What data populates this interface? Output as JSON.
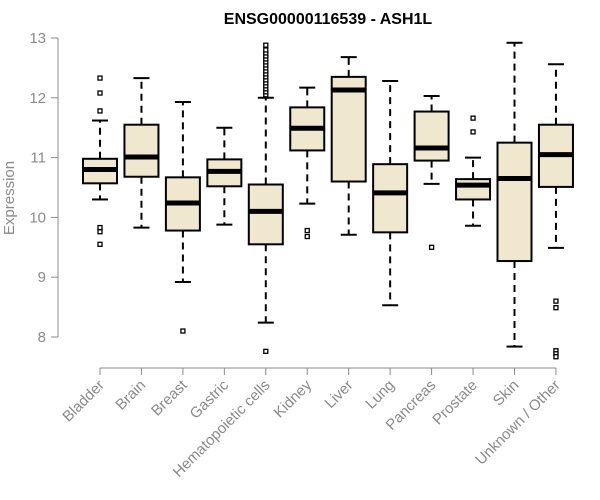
{
  "chart_data": {
    "type": "box",
    "title": "ENSG00000116539 - ASH1L",
    "xlabel": "",
    "ylabel": "Expression",
    "ylim": [
      7.6,
      13.0
    ],
    "yticks": [
      8,
      9,
      10,
      11,
      12,
      13
    ],
    "categories": [
      "Bladder",
      "Brain",
      "Breast",
      "Gastric",
      "Hematopoietic cells",
      "Kidney",
      "Liver",
      "Lung",
      "Pancreas",
      "Prostate",
      "Skin",
      "Unknown / Other"
    ],
    "box_fill": "#efe8cf",
    "stroke": "#000000",
    "boxes": [
      {
        "category": "Bladder",
        "whisker_low": 10.3,
        "q1": 10.57,
        "median": 10.8,
        "q3": 10.98,
        "whisker_high": 11.62,
        "outliers": [
          12.33,
          12.08,
          11.78,
          9.83,
          9.76,
          9.55
        ]
      },
      {
        "category": "Brain",
        "whisker_low": 9.83,
        "q1": 10.68,
        "median": 11.01,
        "q3": 11.55,
        "whisker_high": 12.33,
        "outliers": []
      },
      {
        "category": "Breast",
        "whisker_low": 8.92,
        "q1": 9.78,
        "median": 10.24,
        "q3": 10.67,
        "whisker_high": 11.93,
        "outliers": [
          8.1
        ]
      },
      {
        "category": "Gastric",
        "whisker_low": 9.88,
        "q1": 10.52,
        "median": 10.77,
        "q3": 10.97,
        "whisker_high": 11.5,
        "outliers": []
      },
      {
        "category": "Hematopoietic cells",
        "whisker_low": 8.24,
        "q1": 9.55,
        "median": 10.1,
        "q3": 10.55,
        "whisker_high": 12.0,
        "outliers": [
          12.05,
          12.1,
          12.15,
          12.2,
          12.25,
          12.3,
          12.35,
          12.4,
          12.45,
          12.5,
          12.55,
          12.6,
          12.65,
          12.7,
          12.75,
          12.8,
          12.88,
          7.76
        ]
      },
      {
        "category": "Kidney",
        "whisker_low": 10.23,
        "q1": 11.12,
        "median": 11.49,
        "q3": 11.84,
        "whisker_high": 12.17,
        "outliers": [
          9.78,
          9.68
        ]
      },
      {
        "category": "Liver",
        "whisker_low": 9.71,
        "q1": 10.6,
        "median": 12.13,
        "q3": 12.35,
        "whisker_high": 12.68,
        "outliers": []
      },
      {
        "category": "Lung",
        "whisker_low": 8.53,
        "q1": 9.75,
        "median": 10.41,
        "q3": 10.89,
        "whisker_high": 12.28,
        "outliers": []
      },
      {
        "category": "Pancreas",
        "whisker_low": 10.56,
        "q1": 10.95,
        "median": 11.16,
        "q3": 11.77,
        "whisker_high": 12.03,
        "outliers": [
          9.5
        ]
      },
      {
        "category": "Prostate",
        "whisker_low": 9.86,
        "q1": 10.3,
        "median": 10.54,
        "q3": 10.64,
        "whisker_high": 11.0,
        "outliers": [
          11.66,
          11.43
        ]
      },
      {
        "category": "Skin",
        "whisker_low": 7.84,
        "q1": 9.27,
        "median": 10.65,
        "q3": 11.25,
        "whisker_high": 12.92,
        "outliers": []
      },
      {
        "category": "Unknown / Other",
        "whisker_low": 9.49,
        "q1": 10.51,
        "median": 11.05,
        "q3": 11.55,
        "whisker_high": 12.56,
        "outliers": [
          8.6,
          8.49,
          7.77,
          7.72,
          7.67
        ]
      }
    ]
  }
}
